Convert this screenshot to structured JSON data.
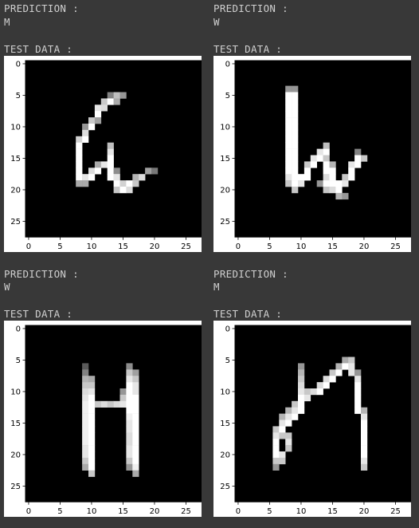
{
  "labels": {
    "prediction": "PREDICTION :",
    "test_data": "TEST DATA :"
  },
  "panels": [
    {
      "prediction": "M"
    },
    {
      "prediction": "W"
    },
    {
      "prediction": "W"
    },
    {
      "prediction": "M"
    }
  ],
  "chart_data": [
    {
      "type": "heatmap",
      "xlim": [
        0,
        27
      ],
      "ylim": [
        0,
        27
      ],
      "xticks": [
        "0",
        "5",
        "10",
        "15",
        "20",
        "25"
      ],
      "yticks": [
        "0",
        "5",
        "10",
        "15",
        "20",
        "25"
      ],
      "cells": [
        [
          5,
          13,
          130
        ],
        [
          5,
          14,
          190
        ],
        [
          5,
          15,
          150
        ],
        [
          6,
          12,
          200
        ],
        [
          6,
          13,
          255
        ],
        [
          6,
          14,
          170
        ],
        [
          7,
          11,
          230
        ],
        [
          7,
          12,
          220
        ],
        [
          8,
          11,
          255
        ],
        [
          9,
          10,
          200
        ],
        [
          9,
          11,
          160
        ],
        [
          10,
          9,
          150
        ],
        [
          10,
          10,
          255
        ],
        [
          11,
          9,
          220
        ],
        [
          12,
          8,
          210
        ],
        [
          12,
          9,
          255
        ],
        [
          13,
          8,
          255
        ],
        [
          13,
          13,
          190
        ],
        [
          14,
          8,
          255
        ],
        [
          14,
          13,
          230
        ],
        [
          15,
          8,
          255
        ],
        [
          15,
          13,
          255
        ],
        [
          16,
          8,
          255
        ],
        [
          16,
          11,
          170
        ],
        [
          16,
          12,
          230
        ],
        [
          16,
          13,
          255
        ],
        [
          17,
          8,
          255
        ],
        [
          17,
          10,
          220
        ],
        [
          17,
          11,
          255
        ],
        [
          17,
          13,
          255
        ],
        [
          17,
          14,
          140
        ],
        [
          17,
          19,
          160
        ],
        [
          17,
          20,
          120
        ],
        [
          18,
          8,
          255
        ],
        [
          18,
          9,
          230
        ],
        [
          18,
          10,
          255
        ],
        [
          18,
          13,
          255
        ],
        [
          18,
          14,
          230
        ],
        [
          18,
          17,
          180
        ],
        [
          18,
          18,
          220
        ],
        [
          19,
          8,
          170
        ],
        [
          19,
          9,
          170
        ],
        [
          19,
          14,
          255
        ],
        [
          19,
          15,
          210
        ],
        [
          19,
          16,
          255
        ],
        [
          19,
          17,
          200
        ],
        [
          20,
          14,
          200
        ],
        [
          20,
          15,
          255
        ],
        [
          20,
          16,
          220
        ]
      ]
    },
    {
      "type": "heatmap",
      "xlim": [
        0,
        27
      ],
      "ylim": [
        0,
        27
      ],
      "xticks": [
        "0",
        "5",
        "10",
        "15",
        "20",
        "25"
      ],
      "yticks": [
        "0",
        "5",
        "10",
        "15",
        "20",
        "25"
      ],
      "cells": [
        [
          4,
          8,
          150
        ],
        [
          4,
          9,
          150
        ],
        [
          5,
          8,
          255
        ],
        [
          5,
          9,
          255
        ],
        [
          6,
          8,
          255
        ],
        [
          6,
          9,
          255
        ],
        [
          7,
          8,
          255
        ],
        [
          7,
          9,
          255
        ],
        [
          8,
          8,
          255
        ],
        [
          8,
          9,
          255
        ],
        [
          9,
          8,
          255
        ],
        [
          9,
          9,
          255
        ],
        [
          10,
          8,
          255
        ],
        [
          10,
          9,
          255
        ],
        [
          11,
          8,
          255
        ],
        [
          11,
          9,
          255
        ],
        [
          12,
          8,
          255
        ],
        [
          12,
          9,
          255
        ],
        [
          13,
          8,
          255
        ],
        [
          13,
          9,
          255
        ],
        [
          13,
          14,
          190
        ],
        [
          14,
          8,
          255
        ],
        [
          14,
          9,
          255
        ],
        [
          14,
          13,
          230
        ],
        [
          14,
          14,
          255
        ],
        [
          14,
          19,
          130
        ],
        [
          15,
          8,
          255
        ],
        [
          15,
          9,
          255
        ],
        [
          15,
          12,
          230
        ],
        [
          15,
          13,
          255
        ],
        [
          15,
          14,
          200
        ],
        [
          15,
          19,
          255
        ],
        [
          15,
          20,
          200
        ],
        [
          16,
          8,
          255
        ],
        [
          16,
          9,
          255
        ],
        [
          16,
          11,
          200
        ],
        [
          16,
          12,
          255
        ],
        [
          16,
          14,
          255
        ],
        [
          16,
          15,
          180
        ],
        [
          16,
          18,
          230
        ],
        [
          16,
          19,
          255
        ],
        [
          17,
          8,
          255
        ],
        [
          17,
          9,
          255
        ],
        [
          17,
          11,
          255
        ],
        [
          17,
          14,
          255
        ],
        [
          17,
          15,
          255
        ],
        [
          17,
          18,
          255
        ],
        [
          18,
          8,
          230
        ],
        [
          18,
          9,
          255
        ],
        [
          18,
          10,
          255
        ],
        [
          18,
          11,
          255
        ],
        [
          18,
          14,
          220
        ],
        [
          18,
          15,
          255
        ],
        [
          18,
          17,
          200
        ],
        [
          18,
          18,
          255
        ],
        [
          19,
          8,
          200
        ],
        [
          19,
          9,
          255
        ],
        [
          19,
          10,
          230
        ],
        [
          19,
          13,
          150
        ],
        [
          19,
          14,
          255
        ],
        [
          19,
          15,
          255
        ],
        [
          19,
          16,
          255
        ],
        [
          19,
          17,
          230
        ],
        [
          20,
          9,
          200
        ],
        [
          20,
          14,
          200
        ],
        [
          20,
          15,
          220
        ],
        [
          20,
          16,
          255
        ],
        [
          21,
          16,
          180
        ],
        [
          21,
          17,
          150
        ]
      ]
    },
    {
      "type": "heatmap",
      "xlim": [
        0,
        27
      ],
      "ylim": [
        0,
        27
      ],
      "xticks": [
        "0",
        "5",
        "10",
        "15",
        "20",
        "25"
      ],
      "yticks": [
        "0",
        "5",
        "10",
        "15",
        "20",
        "25"
      ],
      "cells": [
        [
          6,
          9,
          90
        ],
        [
          6,
          16,
          140
        ],
        [
          7,
          9,
          130
        ],
        [
          7,
          16,
          200
        ],
        [
          7,
          17,
          160
        ],
        [
          8,
          9,
          180
        ],
        [
          8,
          10,
          170
        ],
        [
          8,
          16,
          230
        ],
        [
          8,
          17,
          200
        ],
        [
          9,
          9,
          200
        ],
        [
          9,
          10,
          200
        ],
        [
          9,
          16,
          255
        ],
        [
          9,
          17,
          230
        ],
        [
          10,
          9,
          220
        ],
        [
          10,
          10,
          230
        ],
        [
          10,
          15,
          150
        ],
        [
          10,
          16,
          255
        ],
        [
          10,
          17,
          230
        ],
        [
          11,
          9,
          230
        ],
        [
          11,
          10,
          255
        ],
        [
          11,
          15,
          200
        ],
        [
          11,
          16,
          255
        ],
        [
          11,
          17,
          255
        ],
        [
          12,
          9,
          240
        ],
        [
          12,
          10,
          255
        ],
        [
          12,
          11,
          200
        ],
        [
          12,
          12,
          220
        ],
        [
          12,
          13,
          200
        ],
        [
          12,
          14,
          220
        ],
        [
          12,
          15,
          230
        ],
        [
          12,
          16,
          255
        ],
        [
          12,
          17,
          255
        ],
        [
          13,
          9,
          240
        ],
        [
          13,
          10,
          255
        ],
        [
          13,
          16,
          255
        ],
        [
          13,
          17,
          255
        ],
        [
          14,
          9,
          240
        ],
        [
          14,
          10,
          255
        ],
        [
          14,
          16,
          240
        ],
        [
          14,
          17,
          255
        ],
        [
          15,
          9,
          240
        ],
        [
          15,
          10,
          255
        ],
        [
          15,
          16,
          230
        ],
        [
          15,
          17,
          255
        ],
        [
          16,
          9,
          240
        ],
        [
          16,
          10,
          255
        ],
        [
          16,
          16,
          230
        ],
        [
          16,
          17,
          255
        ],
        [
          17,
          9,
          240
        ],
        [
          17,
          10,
          255
        ],
        [
          17,
          16,
          220
        ],
        [
          17,
          17,
          255
        ],
        [
          18,
          9,
          240
        ],
        [
          18,
          10,
          255
        ],
        [
          18,
          16,
          220
        ],
        [
          18,
          17,
          255
        ],
        [
          19,
          9,
          230
        ],
        [
          19,
          10,
          255
        ],
        [
          19,
          16,
          230
        ],
        [
          19,
          17,
          255
        ],
        [
          20,
          9,
          230
        ],
        [
          20,
          10,
          255
        ],
        [
          20,
          16,
          230
        ],
        [
          20,
          17,
          255
        ],
        [
          21,
          9,
          200
        ],
        [
          21,
          10,
          255
        ],
        [
          21,
          16,
          200
        ],
        [
          21,
          17,
          255
        ],
        [
          22,
          9,
          170
        ],
        [
          22,
          10,
          255
        ],
        [
          22,
          16,
          150
        ],
        [
          22,
          17,
          240
        ],
        [
          23,
          10,
          200
        ],
        [
          23,
          17,
          170
        ]
      ]
    },
    {
      "type": "heatmap",
      "xlim": [
        0,
        27
      ],
      "ylim": [
        0,
        27
      ],
      "xticks": [
        "0",
        "5",
        "10",
        "15",
        "20",
        "25"
      ],
      "yticks": [
        "0",
        "5",
        "10",
        "15",
        "20",
        "25"
      ],
      "cells": [
        [
          5,
          17,
          170
        ],
        [
          5,
          18,
          200
        ],
        [
          6,
          10,
          150
        ],
        [
          6,
          16,
          180
        ],
        [
          6,
          17,
          255
        ],
        [
          6,
          18,
          230
        ],
        [
          7,
          10,
          180
        ],
        [
          7,
          15,
          200
        ],
        [
          7,
          16,
          255
        ],
        [
          7,
          18,
          230
        ],
        [
          7,
          19,
          150
        ],
        [
          8,
          10,
          200
        ],
        [
          8,
          14,
          220
        ],
        [
          8,
          15,
          255
        ],
        [
          8,
          19,
          230
        ],
        [
          9,
          10,
          220
        ],
        [
          9,
          13,
          220
        ],
        [
          9,
          14,
          255
        ],
        [
          9,
          19,
          255
        ],
        [
          10,
          10,
          230
        ],
        [
          10,
          11,
          200
        ],
        [
          10,
          12,
          220
        ],
        [
          10,
          13,
          255
        ],
        [
          10,
          19,
          255
        ],
        [
          11,
          10,
          255
        ],
        [
          11,
          11,
          230
        ],
        [
          11,
          19,
          255
        ],
        [
          12,
          9,
          200
        ],
        [
          12,
          10,
          255
        ],
        [
          12,
          19,
          255
        ],
        [
          13,
          8,
          180
        ],
        [
          13,
          9,
          230
        ],
        [
          13,
          10,
          255
        ],
        [
          13,
          19,
          255
        ],
        [
          13,
          20,
          180
        ],
        [
          14,
          7,
          180
        ],
        [
          14,
          8,
          230
        ],
        [
          14,
          9,
          255
        ],
        [
          14,
          20,
          230
        ],
        [
          15,
          7,
          230
        ],
        [
          15,
          8,
          255
        ],
        [
          15,
          20,
          255
        ],
        [
          16,
          6,
          200
        ],
        [
          16,
          7,
          255
        ],
        [
          16,
          20,
          255
        ],
        [
          17,
          6,
          230
        ],
        [
          17,
          7,
          200
        ],
        [
          17,
          8,
          200
        ],
        [
          17,
          20,
          255
        ],
        [
          18,
          6,
          255
        ],
        [
          18,
          8,
          230
        ],
        [
          18,
          20,
          255
        ],
        [
          19,
          6,
          255
        ],
        [
          19,
          8,
          200
        ],
        [
          19,
          20,
          255
        ],
        [
          20,
          6,
          255
        ],
        [
          20,
          7,
          230
        ],
        [
          20,
          20,
          255
        ],
        [
          21,
          6,
          200
        ],
        [
          21,
          7,
          200
        ],
        [
          21,
          20,
          230
        ],
        [
          22,
          6,
          150
        ],
        [
          22,
          20,
          200
        ]
      ]
    }
  ]
}
